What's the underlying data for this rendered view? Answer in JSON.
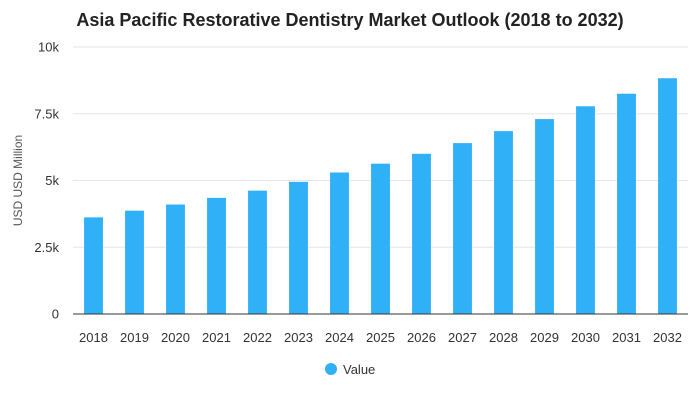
{
  "chart_data": {
    "type": "bar",
    "title": "Asia Pacific Restorative Dentistry Market Outlook (2018 to 2032)",
    "xlabel": "",
    "ylabel": "USD USD Million",
    "ylim": [
      0,
      10000
    ],
    "yticks": [
      0,
      2500,
      5000,
      7500,
      10000
    ],
    "ytick_labels": [
      "0",
      "2.5k",
      "5k",
      "7.5k",
      "10k"
    ],
    "categories": [
      "2018",
      "2019",
      "2020",
      "2021",
      "2022",
      "2023",
      "2024",
      "2025",
      "2026",
      "2027",
      "2028",
      "2029",
      "2030",
      "2031",
      "2032"
    ],
    "series": [
      {
        "name": "Value",
        "color": "#2fb0f7",
        "values": [
          3620,
          3870,
          4100,
          4350,
          4620,
          4950,
          5300,
          5630,
          6000,
          6400,
          6850,
          7300,
          7780,
          8250,
          8830
        ]
      }
    ],
    "grid": true,
    "legend": "bottom-center"
  }
}
